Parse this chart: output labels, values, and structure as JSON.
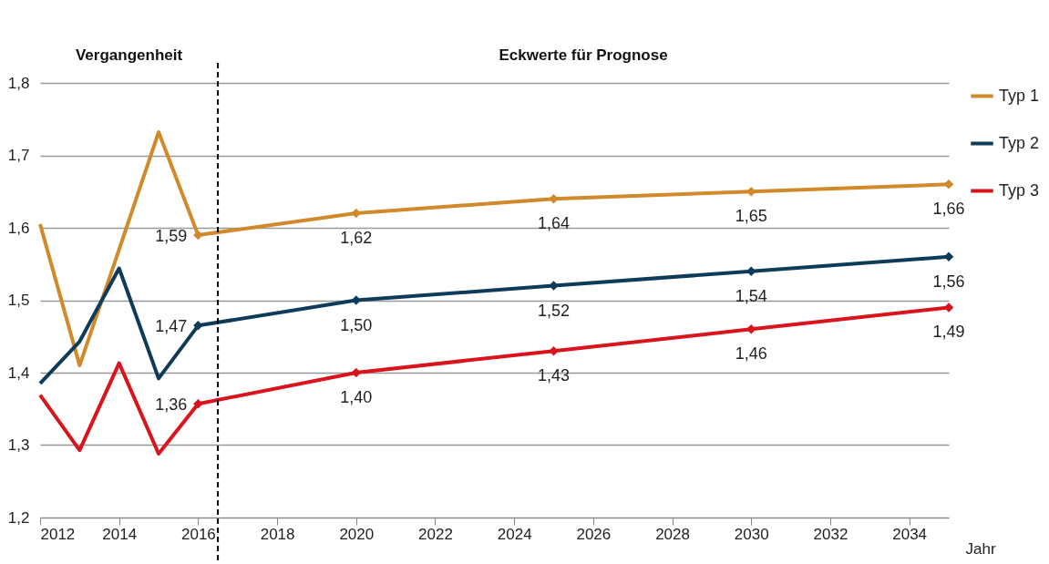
{
  "chart_data": {
    "type": "line",
    "xlabel": "Jahr",
    "annotations": [
      "Vergangenheit",
      "Eckwerte für Prognose"
    ],
    "xlim": [
      2012,
      2035
    ],
    "xticks": [
      2012,
      2014,
      2016,
      2018,
      2020,
      2022,
      2024,
      2026,
      2028,
      2030,
      2032,
      2034
    ],
    "ylim": [
      1.2,
      1.8
    ],
    "yticks": [
      {
        "value": 1.2,
        "label": "1,2"
      },
      {
        "value": 1.3,
        "label": "1,3"
      },
      {
        "value": 1.4,
        "label": "1,4"
      },
      {
        "value": 1.5,
        "label": "1,5"
      },
      {
        "value": 1.6,
        "label": "1,6"
      },
      {
        "value": 1.7,
        "label": "1,7"
      },
      {
        "value": 1.8,
        "label": "1,8"
      }
    ],
    "grid": "y",
    "legend": "right",
    "line_style": "solid",
    "ref_lines": [
      {
        "axis": "x",
        "value": 2016.5,
        "color": "#000000",
        "line_style": "dashed"
      }
    ],
    "series": [
      {
        "name": "Typ 1",
        "color": "#d08a2a",
        "marker": "diamond",
        "x": [
          2016,
          2020,
          2025,
          2030,
          2035
        ],
        "values": [
          1.59,
          1.62,
          1.64,
          1.65,
          1.66
        ],
        "value_labels": [
          "1,59",
          "1,62",
          "1,64",
          "1,65",
          "1,66"
        ]
      },
      {
        "name": "Typ 2",
        "color": "#0f3b5a",
        "marker": "diamond",
        "x": [
          2016,
          2020,
          2025,
          2030,
          2035
        ],
        "values": [
          1.465,
          1.5,
          1.52,
          1.54,
          1.56
        ],
        "value_labels": [
          "1,47",
          "1,50",
          "1,52",
          "1,54",
          "1,56"
        ]
      },
      {
        "name": "Typ 3",
        "color": "#d9141c",
        "marker": "diamond",
        "x": [
          2016,
          2020,
          2025,
          2030,
          2035
        ],
        "values": [
          1.357,
          1.4,
          1.43,
          1.46,
          1.49
        ],
        "value_labels": [
          "1,36",
          "1,40",
          "1,43",
          "1,46",
          "1,49"
        ]
      },
      {
        "color": "#d08a2a",
        "marker": "none",
        "x": [
          2012,
          2013,
          2014,
          2015,
          2016
        ],
        "values": [
          1.605,
          1.41,
          1.57,
          1.732,
          1.59
        ]
      },
      {
        "color": "#0f3b5a",
        "marker": "none",
        "x": [
          2012,
          2013,
          2014,
          2015,
          2016
        ],
        "values": [
          1.385,
          1.443,
          1.544,
          1.392,
          1.465
        ]
      },
      {
        "color": "#d9141c",
        "marker": "none",
        "x": [
          2012,
          2013,
          2014,
          2015,
          2016
        ],
        "values": [
          1.369,
          1.293,
          1.413,
          1.288,
          1.357
        ]
      }
    ]
  }
}
